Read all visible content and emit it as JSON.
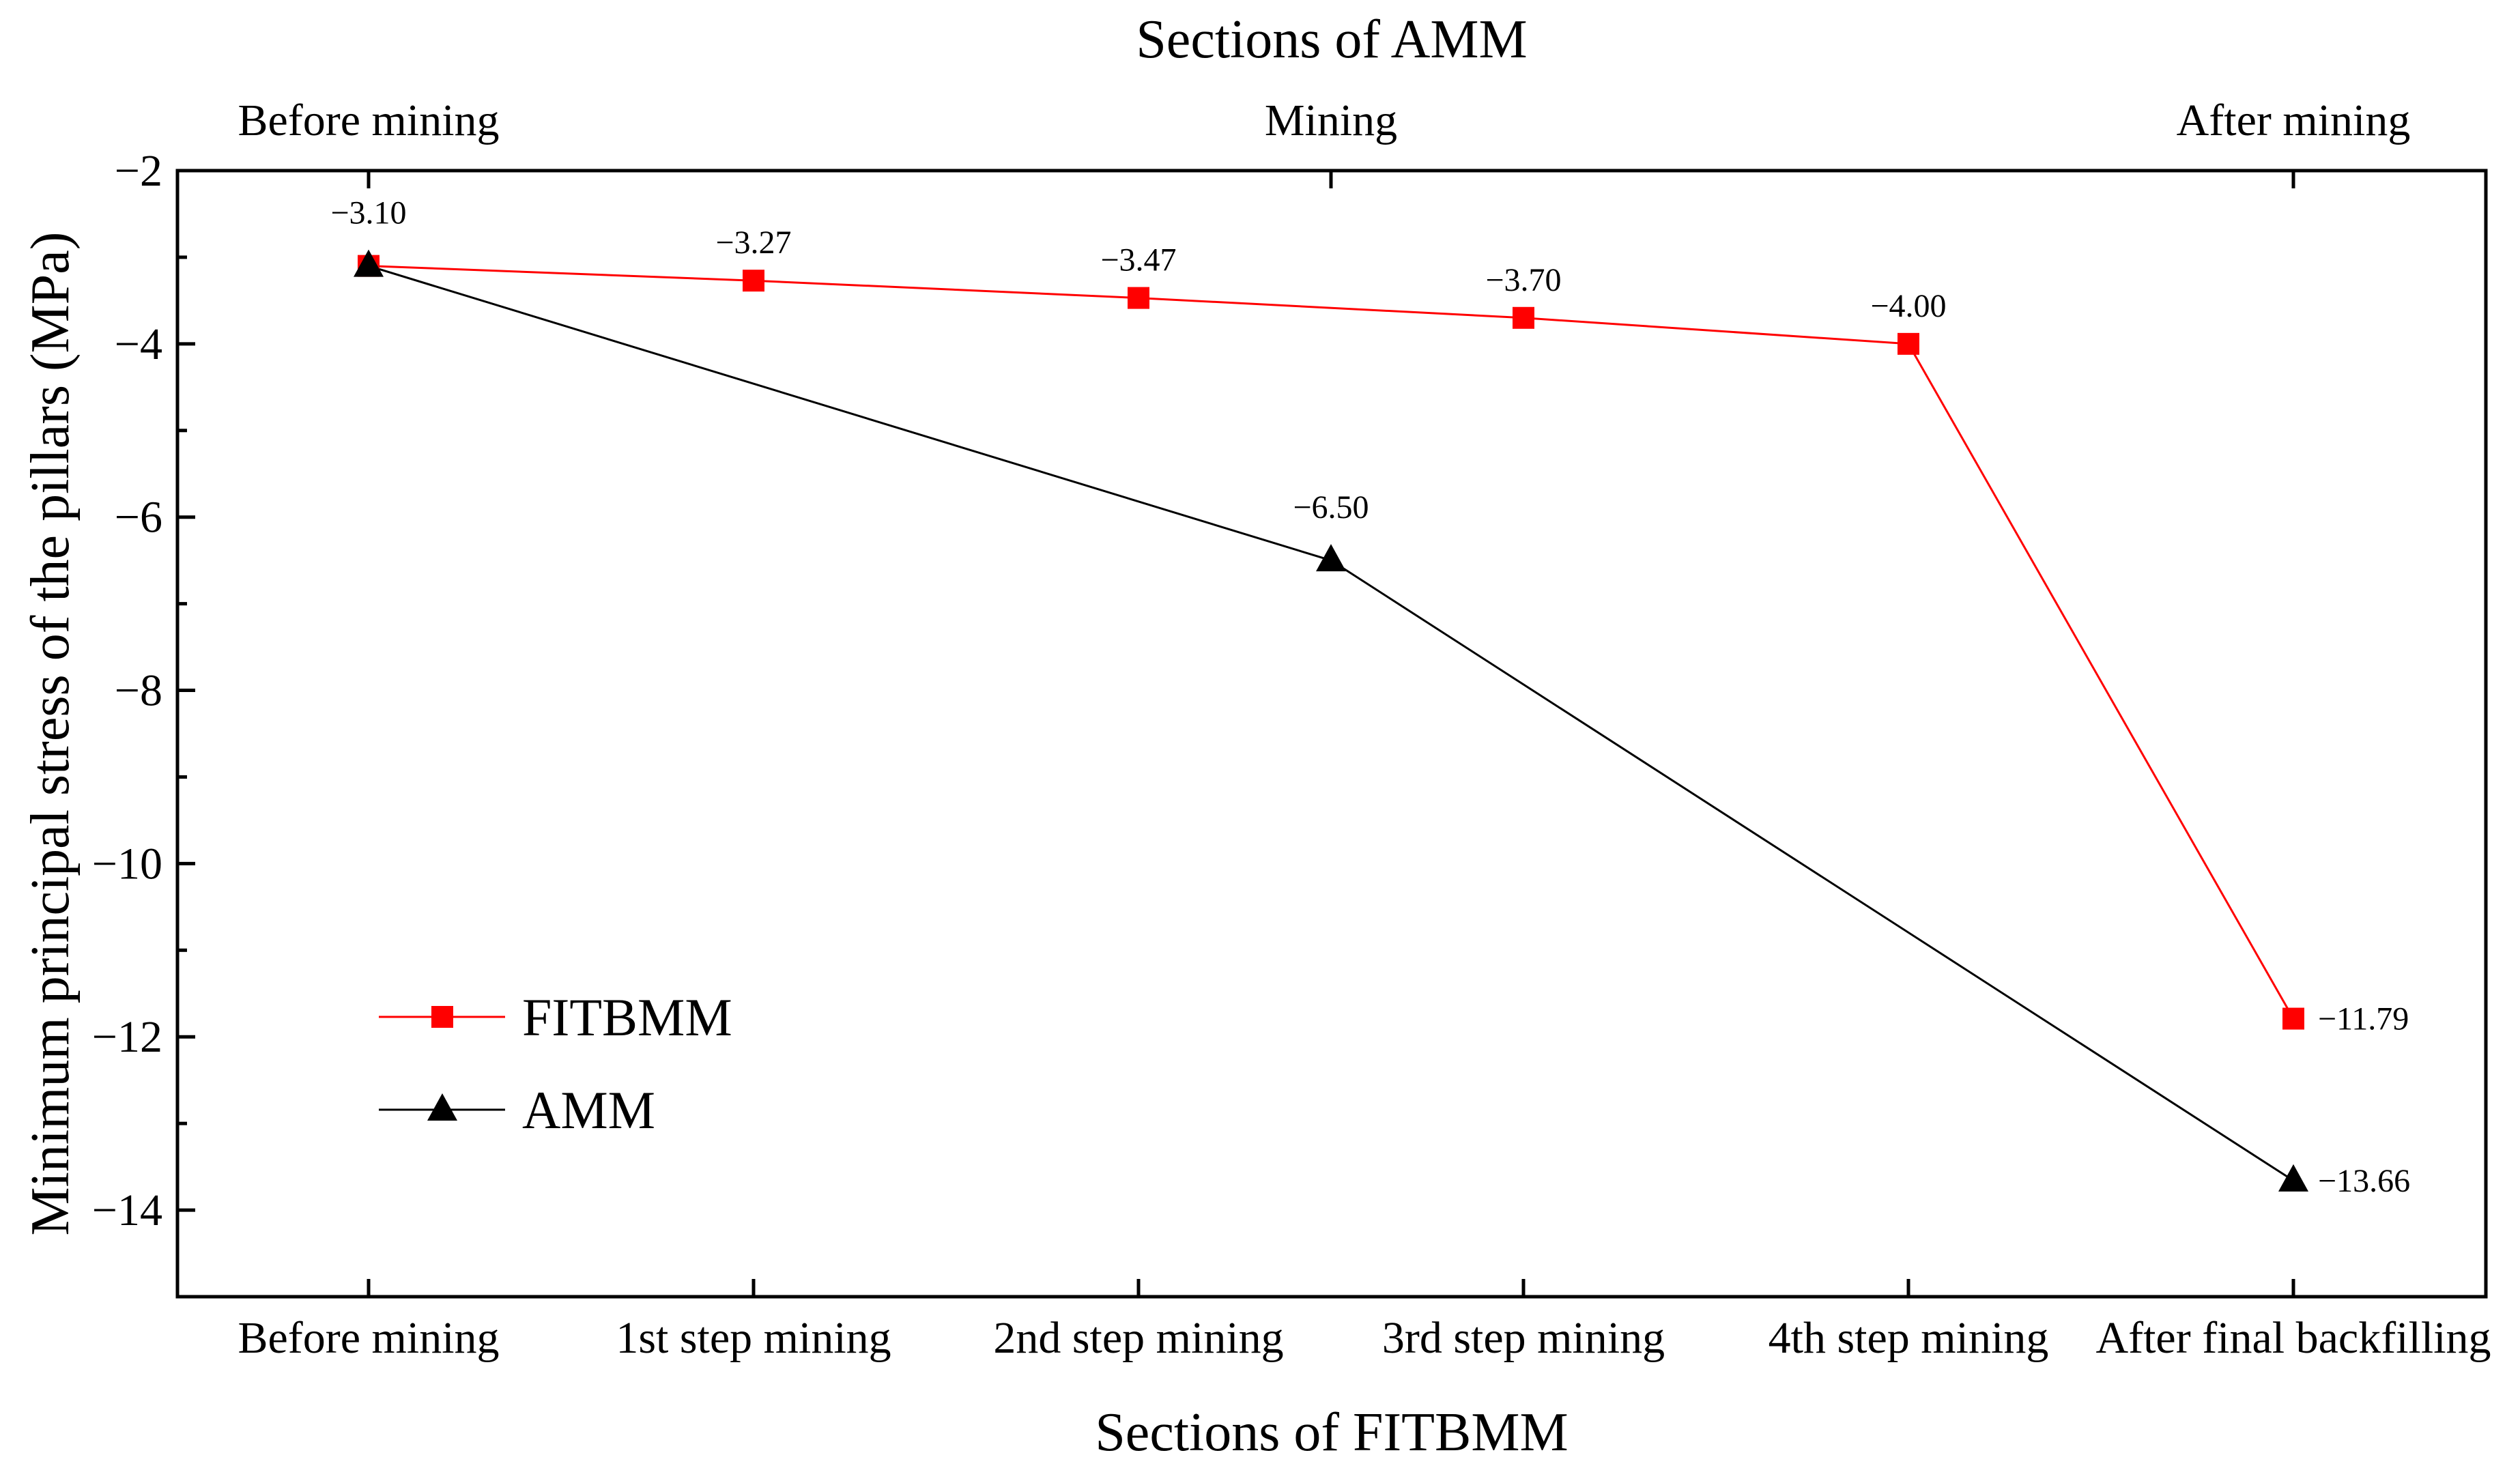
{
  "chart_data": {
    "type": "line",
    "title": "",
    "xlabel": "Sections of FITBMM",
    "ylabel": "Minimum principal stress of the pillars (MPa)",
    "top_xlabel": "Sections of AMM",
    "ylim": [
      -15,
      -2
    ],
    "yticks": [
      "−2",
      "−4",
      "−6",
      "−8",
      "−10",
      "−12",
      "−14"
    ],
    "ytick_values": [
      -2,
      -4,
      -6,
      -8,
      -10,
      -12,
      -14
    ],
    "categories": [
      "Before mining",
      "1st step mining",
      "2nd step mining",
      "3rd step mining",
      "4th step mining",
      "After final backfilling"
    ],
    "top_categories": [
      "Before mining",
      "Mining",
      "After mining"
    ],
    "top_category_positions": [
      0,
      2.5,
      5
    ],
    "legend_position": "center-left",
    "series": [
      {
        "name": "FITBMM",
        "marker": "square",
        "color": "#ff0000",
        "x": [
          0,
          1,
          2,
          3,
          4,
          5
        ],
        "values": [
          -3.1,
          -3.27,
          -3.47,
          -3.7,
          -4.0,
          -11.79
        ],
        "labels": [
          "",
          "−3.27",
          "−3.47",
          "−3.70",
          "−4.00",
          "−11.79"
        ]
      },
      {
        "name": "AMM",
        "marker": "triangle",
        "color": "#000000",
        "x": [
          0,
          2.5,
          5
        ],
        "values": [
          -3.1,
          -6.5,
          -13.66
        ],
        "labels": [
          "−3.10",
          "−6.50",
          "−13.66"
        ]
      }
    ]
  }
}
